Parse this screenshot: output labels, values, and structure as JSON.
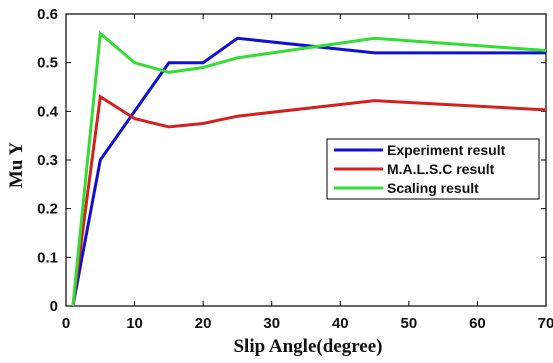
{
  "chart_data": {
    "type": "line",
    "xlabel": "Slip Angle(degree)",
    "ylabel": "Mu Y",
    "xlim": [
      0,
      70
    ],
    "ylim": [
      0,
      0.6
    ],
    "x_ticks": [
      "0",
      "10",
      "20",
      "30",
      "40",
      "50",
      "60",
      "70"
    ],
    "y_ticks": [
      "0",
      "0.1",
      "0.2",
      "0.3",
      "0.4",
      "0.5",
      "0.6"
    ],
    "grid": false,
    "legend_position": "right",
    "series": [
      {
        "name": "Experiment result",
        "color": "#1010d0",
        "x": [
          1,
          5,
          10,
          15,
          20,
          25,
          45,
          70
        ],
        "y": [
          0,
          0.3,
          0.4,
          0.5,
          0.5,
          0.55,
          0.52,
          0.52
        ]
      },
      {
        "name": "M.A.L.S.C result",
        "color": "#d42020",
        "x": [
          1,
          5,
          10,
          15,
          20,
          25,
          45,
          70
        ],
        "y": [
          0,
          0.43,
          0.385,
          0.368,
          0.375,
          0.39,
          0.422,
          0.403
        ]
      },
      {
        "name": "Scaling result",
        "color": "#33dd33",
        "x": [
          1,
          5,
          10,
          15,
          20,
          25,
          45,
          70
        ],
        "y": [
          0,
          0.56,
          0.5,
          0.48,
          0.49,
          0.51,
          0.55,
          0.525
        ]
      }
    ]
  }
}
